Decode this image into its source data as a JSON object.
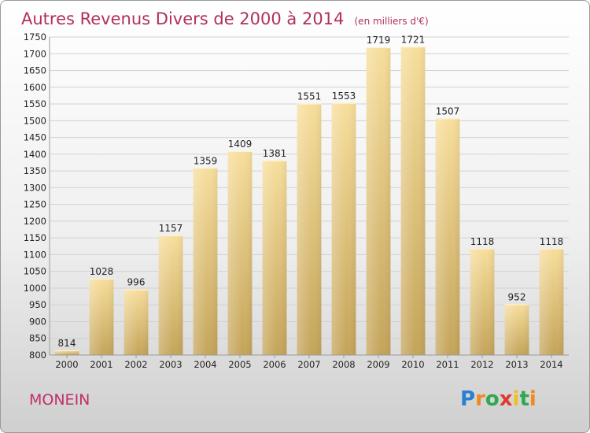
{
  "chart_data": {
    "type": "bar",
    "title": "Autres Revenus Divers de 2000 à 2014",
    "subtitle": "(en milliers d'€)",
    "categories": [
      "2000",
      "2001",
      "2002",
      "2003",
      "2004",
      "2005",
      "2006",
      "2007",
      "2008",
      "2009",
      "2010",
      "2011",
      "2012",
      "2013",
      "2014"
    ],
    "values": [
      814,
      1028,
      996,
      1157,
      1359,
      1409,
      1381,
      1551,
      1553,
      1719,
      1721,
      1507,
      1118,
      952,
      1118
    ],
    "ylim": [
      800,
      1750
    ],
    "yticks": [
      800,
      850,
      900,
      950,
      1000,
      1050,
      1100,
      1150,
      1200,
      1250,
      1300,
      1350,
      1400,
      1450,
      1500,
      1550,
      1600,
      1650,
      1700,
      1750
    ],
    "grid": true,
    "legend": "none"
  },
  "commune": "MONEIN",
  "brand": {
    "letters": [
      "P",
      "r",
      "o",
      "x",
      "i",
      "t",
      "i"
    ],
    "colors": [
      "#2a7fd0",
      "#f08a1c",
      "#2fa84f",
      "#e03a2f",
      "#f0c020",
      "#2fa84f",
      "#f08a1c"
    ]
  },
  "colors": {
    "title": "#b0305f",
    "bar_light": "#f6dc98",
    "bar_dark": "#c8a85e"
  }
}
